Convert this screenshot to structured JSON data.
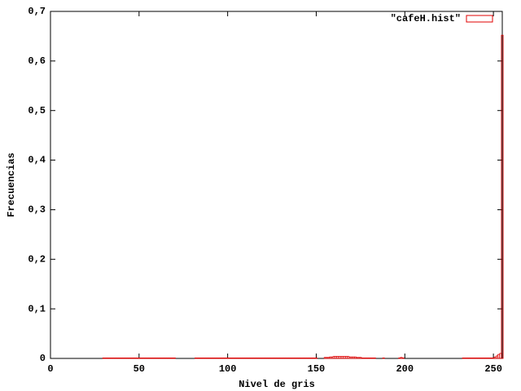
{
  "chart_data": {
    "type": "histogram",
    "xlabel": "Nivel de gris",
    "ylabel": "Frecuencias",
    "xlim": [
      0,
      255
    ],
    "ylim": [
      0,
      0.7
    ],
    "xticks": [
      0,
      50,
      100,
      150,
      200,
      250
    ],
    "yticks": [
      0,
      {
        "value": 0.1,
        "label": "0,1"
      },
      {
        "value": 0.2,
        "label": "0,2"
      },
      {
        "value": 0.3,
        "label": "0,3"
      },
      {
        "value": 0.4,
        "label": "0,4"
      },
      {
        "value": 0.5,
        "label": "0,5"
      },
      {
        "value": 0.6,
        "label": "0,6"
      },
      {
        "value": 0.7,
        "label": "0,7"
      }
    ],
    "legend": "top-right",
    "series": [
      {
        "name": "\"cafeH.hist\"",
        "color": "#e00000",
        "x": [
          30,
          31,
          32,
          33,
          34,
          35,
          36,
          37,
          38,
          39,
          40,
          41,
          42,
          43,
          44,
          45,
          46,
          47,
          48,
          49,
          50,
          51,
          52,
          53,
          54,
          55,
          56,
          57,
          58,
          59,
          60,
          61,
          62,
          63,
          64,
          65,
          66,
          67,
          68,
          69,
          70,
          82,
          83,
          84,
          85,
          86,
          87,
          88,
          89,
          90,
          91,
          92,
          93,
          94,
          95,
          96,
          97,
          98,
          99,
          100,
          101,
          102,
          103,
          104,
          105,
          106,
          107,
          108,
          109,
          110,
          111,
          112,
          113,
          114,
          115,
          116,
          117,
          118,
          119,
          120,
          121,
          122,
          123,
          124,
          125,
          126,
          127,
          128,
          129,
          130,
          131,
          132,
          133,
          134,
          135,
          136,
          137,
          138,
          139,
          140,
          141,
          142,
          143,
          144,
          145,
          146,
          147,
          148,
          149,
          150,
          155,
          156,
          157,
          158,
          159,
          160,
          161,
          162,
          163,
          164,
          165,
          166,
          167,
          168,
          169,
          170,
          171,
          172,
          173,
          174,
          175,
          176,
          177,
          178,
          179,
          180,
          181,
          182,
          183,
          188,
          197,
          198,
          199,
          233,
          234,
          235,
          236,
          237,
          238,
          239,
          240,
          241,
          242,
          243,
          244,
          245,
          246,
          247,
          248,
          249,
          250,
          251,
          252,
          253,
          254,
          255
        ],
        "values": [
          0.001,
          0.001,
          0.001,
          0.001,
          0.001,
          0.001,
          0.001,
          0.001,
          0.001,
          0.001,
          0.001,
          0.001,
          0.001,
          0.001,
          0.001,
          0.001,
          0.001,
          0.001,
          0.001,
          0.001,
          0.001,
          0.001,
          0.001,
          0.001,
          0.001,
          0.001,
          0.001,
          0.001,
          0.001,
          0.001,
          0.001,
          0.001,
          0.001,
          0.001,
          0.001,
          0.001,
          0.001,
          0.001,
          0.001,
          0.001,
          0.001,
          0.001,
          0.001,
          0.001,
          0.001,
          0.001,
          0.001,
          0.001,
          0.001,
          0.001,
          0.001,
          0.001,
          0.001,
          0.001,
          0.001,
          0.001,
          0.001,
          0.001,
          0.001,
          0.001,
          0.001,
          0.001,
          0.001,
          0.001,
          0.001,
          0.001,
          0.001,
          0.001,
          0.001,
          0.001,
          0.001,
          0.001,
          0.001,
          0.001,
          0.001,
          0.001,
          0.001,
          0.001,
          0.001,
          0.001,
          0.001,
          0.001,
          0.001,
          0.001,
          0.001,
          0.001,
          0.001,
          0.001,
          0.001,
          0.001,
          0.001,
          0.001,
          0.001,
          0.001,
          0.001,
          0.001,
          0.001,
          0.001,
          0.001,
          0.001,
          0.001,
          0.001,
          0.001,
          0.001,
          0.001,
          0.001,
          0.001,
          0.001,
          0.001,
          0.001,
          0.002,
          0.002,
          0.002,
          0.003,
          0.003,
          0.004,
          0.004,
          0.004,
          0.004,
          0.004,
          0.004,
          0.004,
          0.004,
          0.004,
          0.003,
          0.003,
          0.003,
          0.003,
          0.002,
          0.002,
          0.002,
          0.001,
          0.001,
          0.001,
          0.001,
          0.001,
          0.001,
          0.001,
          0.001,
          0.001,
          0.001,
          0.002,
          0.001,
          0.001,
          0.001,
          0.001,
          0.001,
          0.001,
          0.001,
          0.001,
          0.001,
          0.001,
          0.001,
          0.001,
          0.001,
          0.001,
          0.001,
          0.001,
          0.001,
          0.001,
          0.001,
          0.003,
          0.005,
          0.008,
          0.01,
          0.652
        ]
      }
    ]
  }
}
